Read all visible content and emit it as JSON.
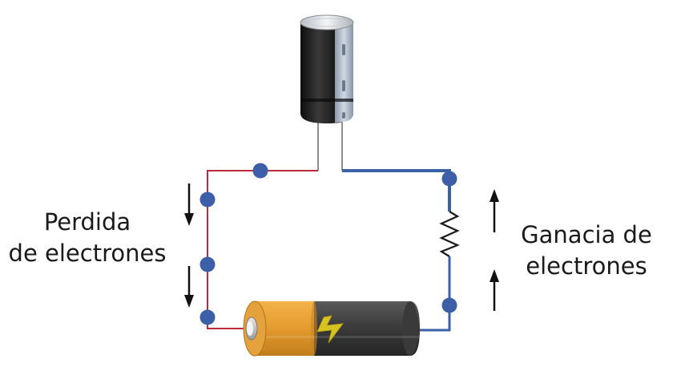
{
  "labels": {
    "loss_line1": "Perdida",
    "loss_line2": "de electrones",
    "gain_line1": "Ganacia de",
    "gain_line2": "electrones"
  },
  "components": {
    "capacitor": "capacitor-icon",
    "battery": "battery-icon",
    "resistor": "resistor-icon",
    "bolt": "lightning-bolt-icon"
  },
  "colors": {
    "negative_wire": "#c0283c",
    "positive_wire": "#3a62a8",
    "electron": "#3d5fa8",
    "battery_orange": "#eba336",
    "battery_body": "#3f3f3f",
    "capacitor_body": "#1e1e1e",
    "capacitor_stripe": "#a9b5c4",
    "bolt": "#e8d21e",
    "arrow": "#111111"
  }
}
